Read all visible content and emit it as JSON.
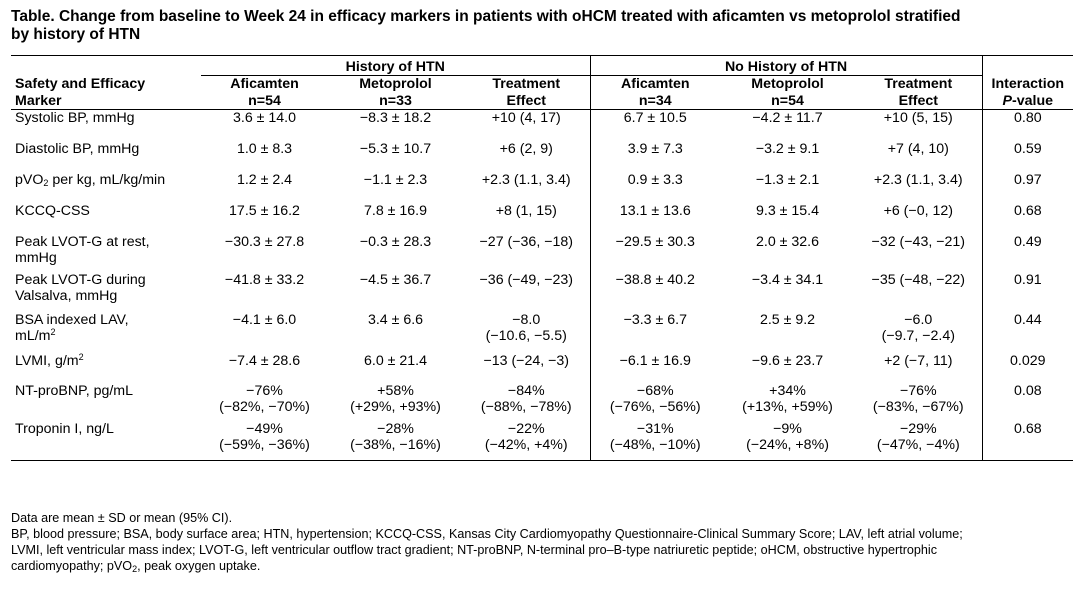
{
  "title_line1": "Table. Change from baseline to Week 24 in efficacy markers in patients with oHCM treated with aficamten vs metoprolol stratified",
  "title_line2": "by history of HTN",
  "groups": {
    "htn": "History of HTN",
    "no_htn": "No History of HTN"
  },
  "headers": {
    "marker_line1": "Safety and Efficacy",
    "marker_line2": "Marker",
    "htn_afi_line1": "Aficamten",
    "htn_afi_line2": "n=54",
    "htn_meto_line1": "Metoprolol",
    "htn_meto_line2": "n=33",
    "htn_te_line1": "Treatment",
    "htn_te_line2": "Effect",
    "nohtn_afi_line1": "Aficamten",
    "nohtn_afi_line2": "n=34",
    "nohtn_meto_line1": "Metoprolol",
    "nohtn_meto_line2": "n=54",
    "nohtn_te_line1": "Treatment",
    "nohtn_te_line2": "Effect",
    "interaction_line1": "Interaction",
    "interaction_p": "P",
    "interaction_value": "-value"
  },
  "rows": [
    {
      "marker_l1": "Systolic BP, mmHg",
      "marker_l2": "",
      "h_afi_l1": "3.6 ± 14.0",
      "h_afi_l2": "",
      "h_meto_l1": "−8.3 ± 18.2",
      "h_meto_l2": "",
      "h_te_l1": "+10 (4, 17)",
      "h_te_l2": "",
      "n_afi_l1": "6.7 ± 10.5",
      "n_afi_l2": "",
      "n_meto_l1": "−4.2 ± 11.7",
      "n_meto_l2": "",
      "n_te_l1": "+10 (5, 15)",
      "n_te_l2": "",
      "p": "0.80"
    },
    {
      "marker_l1": "Diastolic BP, mmHg",
      "marker_l2": "",
      "h_afi_l1": "1.0 ± 8.3",
      "h_afi_l2": "",
      "h_meto_l1": "−5.3 ± 10.7",
      "h_meto_l2": "",
      "h_te_l1": "+6 (2, 9)",
      "h_te_l2": "",
      "n_afi_l1": "3.9 ± 7.3",
      "n_afi_l2": "",
      "n_meto_l1": "−3.2 ± 9.1",
      "n_meto_l2": "",
      "n_te_l1": "+7 (4, 10)",
      "n_te_l2": "",
      "p": "0.59"
    },
    {
      "marker_pre": "pVO",
      "marker_sub": "2",
      "marker_post": " per kg, mL/kg/min",
      "marker_l2": "",
      "h_afi_l1": "1.2 ± 2.4",
      "h_afi_l2": "",
      "h_meto_l1": "−1.1 ± 2.3",
      "h_meto_l2": "",
      "h_te_l1": "+2.3 (1.1, 3.4)",
      "h_te_l2": "",
      "n_afi_l1": "0.9 ± 3.3",
      "n_afi_l2": "",
      "n_meto_l1": "−1.3 ± 2.1",
      "n_meto_l2": "",
      "n_te_l1": "+2.3 (1.1, 3.4)",
      "n_te_l2": "",
      "p": "0.97"
    },
    {
      "marker_l1": "KCCQ-CSS",
      "marker_l2": "",
      "h_afi_l1": "17.5 ± 16.2",
      "h_afi_l2": "",
      "h_meto_l1": "7.8 ± 16.9",
      "h_meto_l2": "",
      "h_te_l1": "+8 (1, 15)",
      "h_te_l2": "",
      "n_afi_l1": "13.1 ± 13.6",
      "n_afi_l2": "",
      "n_meto_l1": "9.3 ± 15.4",
      "n_meto_l2": "",
      "n_te_l1": "+6 (−0, 12)",
      "n_te_l2": "",
      "p": "0.68"
    },
    {
      "marker_l1": "Peak LVOT-G at rest,",
      "marker_l2": "mmHg",
      "h_afi_l1": "−30.3 ± 27.8",
      "h_afi_l2": "",
      "h_meto_l1": "−0.3 ± 28.3",
      "h_meto_l2": "",
      "h_te_l1": "−27 (−36, −18)",
      "h_te_l2": "",
      "n_afi_l1": "−29.5 ± 30.3",
      "n_afi_l2": "",
      "n_meto_l1": "2.0 ± 32.6",
      "n_meto_l2": "",
      "n_te_l1": "−32 (−43, −21)",
      "n_te_l2": "",
      "p": "0.49"
    },
    {
      "marker_l1": "Peak LVOT-G during",
      "marker_l2": "Valsalva, mmHg",
      "h_afi_l1": "−41.8 ± 33.2",
      "h_afi_l2": "",
      "h_meto_l1": "−4.5 ± 36.7",
      "h_meto_l2": "",
      "h_te_l1": "−36 (−49, −23)",
      "h_te_l2": "",
      "n_afi_l1": "−38.8 ± 40.2",
      "n_afi_l2": "",
      "n_meto_l1": "−3.4 ± 34.1",
      "n_meto_l2": "",
      "n_te_l1": "−35 (−48, −22)",
      "n_te_l2": "",
      "p": "0.91"
    },
    {
      "marker_l1": "BSA indexed LAV,",
      "marker_pre2": "mL/m",
      "marker_sup2": "2",
      "h_afi_l1": "−4.1 ± 6.0",
      "h_afi_l2": "",
      "h_meto_l1": "3.4 ± 6.6",
      "h_meto_l2": "",
      "h_te_l1": "−8.0",
      "h_te_l2": "(−10.6, −5.5)",
      "n_afi_l1": "−3.3 ± 6.7",
      "n_afi_l2": "",
      "n_meto_l1": "2.5 ± 9.2",
      "n_meto_l2": "",
      "n_te_l1": "−6.0",
      "n_te_l2": "(−9.7, −2.4)",
      "p": "0.44"
    },
    {
      "marker_pre": "LVMI, g/m",
      "marker_sup": "2",
      "marker_l2": "",
      "h_afi_l1": "−7.4 ± 28.6",
      "h_afi_l2": "",
      "h_meto_l1": "6.0 ± 21.4",
      "h_meto_l2": "",
      "h_te_l1": "−13 (−24, −3)",
      "h_te_l2": "",
      "n_afi_l1": "−6.1 ± 16.9",
      "n_afi_l2": "",
      "n_meto_l1": "−9.6 ± 23.7",
      "n_meto_l2": "",
      "n_te_l1": "+2 (−7, 11)",
      "n_te_l2": "",
      "p": "0.029"
    },
    {
      "marker_l1": "NT-proBNP, pg/mL",
      "marker_l2": "",
      "h_afi_l1": "−76%",
      "h_afi_l2": "(−82%, −70%)",
      "h_meto_l1": "+58%",
      "h_meto_l2": "(+29%, +93%)",
      "h_te_l1": "−84%",
      "h_te_l2": "(−88%, −78%)",
      "n_afi_l1": "−68%",
      "n_afi_l2": "(−76%, −56%)",
      "n_meto_l1": "+34%",
      "n_meto_l2": "(+13%, +59%)",
      "n_te_l1": "−76%",
      "n_te_l2": "(−83%, −67%)",
      "p": "0.08"
    },
    {
      "marker_l1": "Troponin I, ng/L",
      "marker_l2": "",
      "h_afi_l1": "−49%",
      "h_afi_l2": "(−59%, −36%)",
      "h_meto_l1": "−28%",
      "h_meto_l2": "(−38%, −16%)",
      "h_te_l1": "−22%",
      "h_te_l2": "(−42%, +4%)",
      "n_afi_l1": "−31%",
      "n_afi_l2": "(−48%, −10%)",
      "n_meto_l1": "−9%",
      "n_meto_l2": "(−24%, +8%)",
      "n_te_l1": "−29%",
      "n_te_l2": "(−47%, −4%)",
      "p": "0.68"
    }
  ],
  "footer": {
    "line1": "Data are mean ± SD or mean (95% CI).",
    "line2": "BP, blood pressure; BSA, body surface area; HTN, hypertension; KCCQ-CSS, Kansas City Cardiomyopathy Questionnaire-Clinical Summary Score; LAV, left atrial volume;",
    "line3": "LVMI, left ventricular mass index; LVOT-G, left ventricular outflow tract gradient; NT-proBNP, N-terminal pro–B-type natriuretic peptide; oHCM, obstructive hypertrophic",
    "line4_pre": "cardiomyopathy; pVO",
    "line4_sub": "2",
    "line4_post": ", peak oxygen uptake."
  }
}
